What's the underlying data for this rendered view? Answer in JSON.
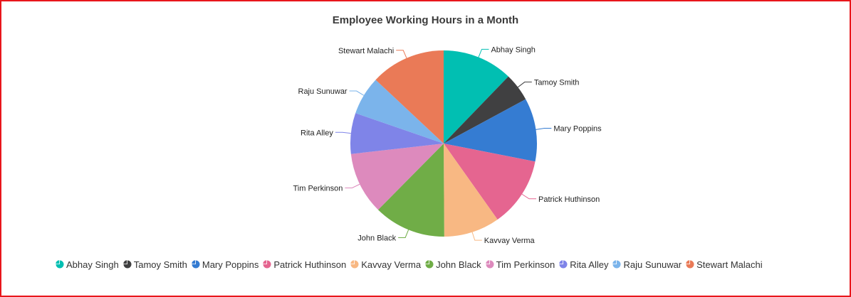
{
  "chart_data": {
    "type": "pie",
    "title": "Employee Working Hours in a Month",
    "legend_position": "bottom",
    "slices": [
      {
        "label": "Abhay Singh",
        "value": 12.2,
        "color": "#01bfb2"
      },
      {
        "label": "Tamoy Smith",
        "value": 4.9,
        "color": "#404041"
      },
      {
        "label": "Mary Poppins",
        "value": 11.0,
        "color": "#357cd2"
      },
      {
        "label": "Patrick Huthinson",
        "value": 12.1,
        "color": "#e56590"
      },
      {
        "label": "Kavvay Verma",
        "value": 9.7,
        "color": "#f8b883"
      },
      {
        "label": "John Black",
        "value": 12.5,
        "color": "#70ad47"
      },
      {
        "label": "Tim Perkinson",
        "value": 10.8,
        "color": "#dd8abd"
      },
      {
        "label": "Rita Alley",
        "value": 7.1,
        "color": "#7f84e8"
      },
      {
        "label": "Raju Sunuwar",
        "value": 6.7,
        "color": "#7bb4eb"
      },
      {
        "label": "Stewart Malachi",
        "value": 13.0,
        "color": "#ea7a57"
      }
    ]
  }
}
